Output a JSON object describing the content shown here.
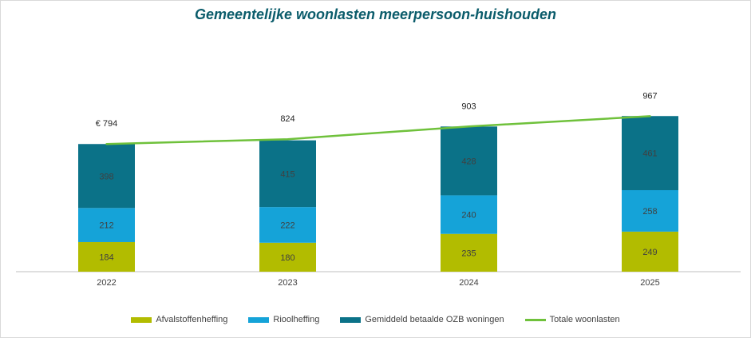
{
  "chart_data": {
    "type": "bar",
    "stacked": true,
    "title": "Gemeentelijke woonlasten meerpersoon-huishouden",
    "categories": [
      "2022",
      "2023",
      "2024",
      "2025"
    ],
    "series": [
      {
        "name": "Afvalstoffenheffing",
        "values": [
          184,
          180,
          235,
          249
        ],
        "color": "#b2bc00"
      },
      {
        "name": "Rioolheffing",
        "values": [
          212,
          222,
          240,
          258
        ],
        "color": "#15a3d8"
      },
      {
        "name": "Gemiddeld betaalde OZB woningen",
        "values": [
          398,
          415,
          428,
          461
        ],
        "color": "#0b7288"
      }
    ],
    "line": {
      "name": "Totale woonlasten",
      "values": [
        794,
        824,
        903,
        967
      ],
      "color": "#6fc13b"
    },
    "total_labels": [
      "€ 794",
      "824",
      "903",
      "967"
    ],
    "ylim": [
      0,
      1250
    ],
    "grid": false,
    "legend_position": "bottom"
  }
}
